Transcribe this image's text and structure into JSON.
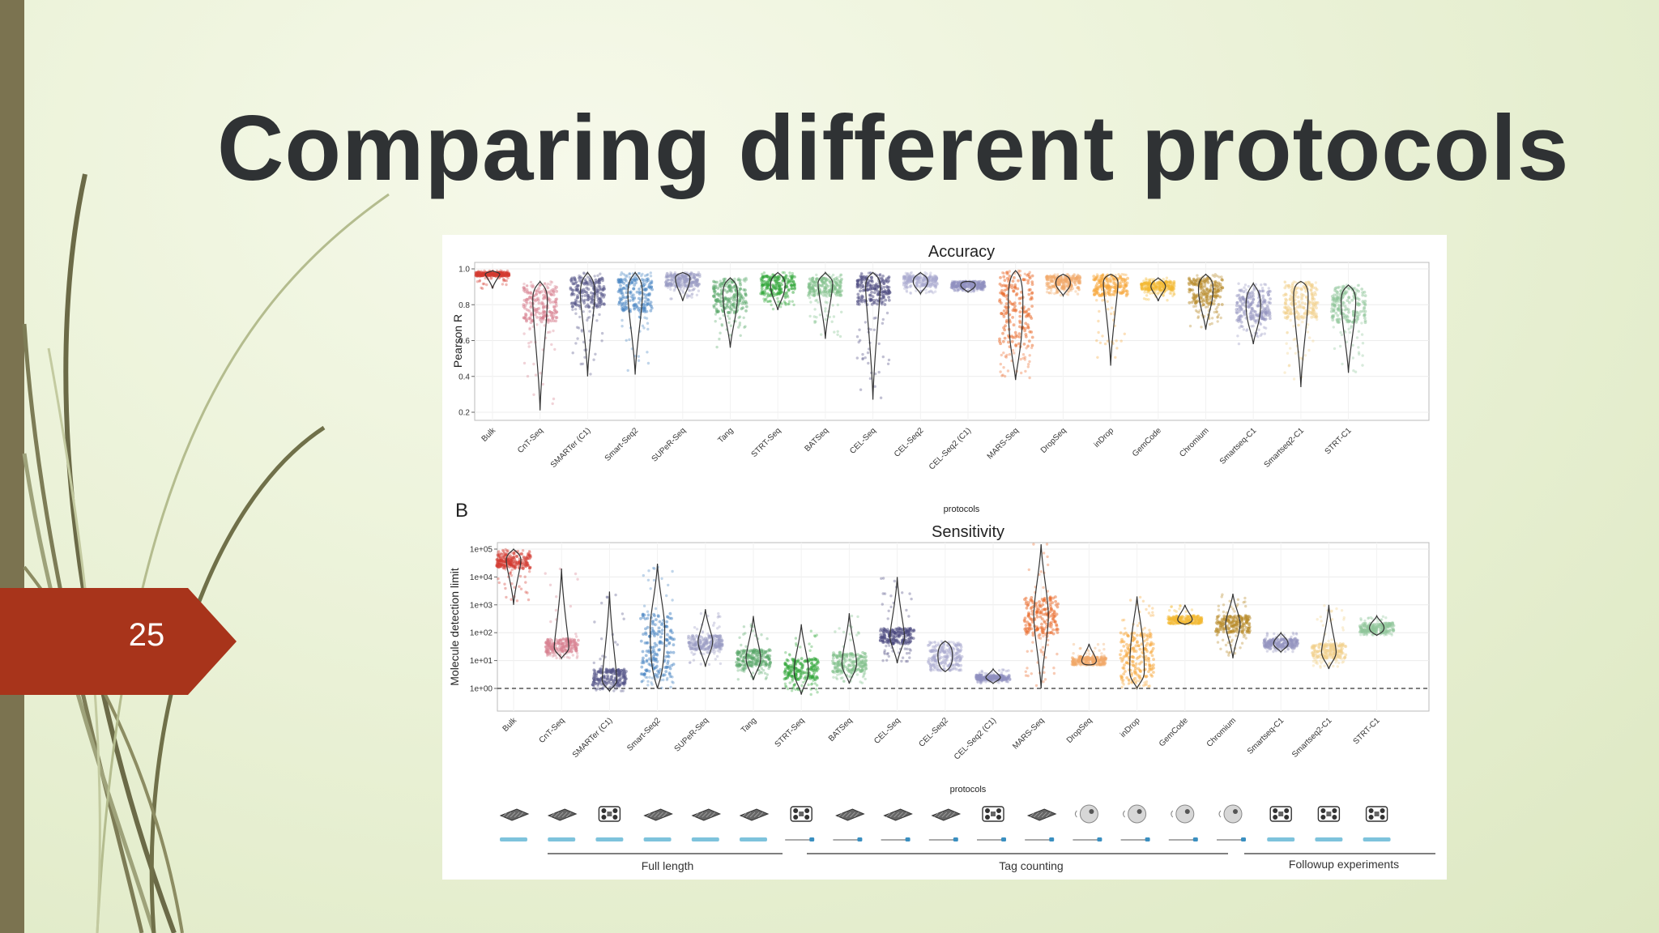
{
  "slide": {
    "title": "Comparing different protocols",
    "page_number": "25",
    "colors": {
      "accent": "#a8341b",
      "side_bar": "#7b7350"
    }
  },
  "chart_data": [
    {
      "type": "scatter",
      "title": "Accuracy",
      "xlabel": "protocols",
      "ylabel": "Pearson R",
      "ylim": [
        0.2,
        1.0
      ],
      "yticks": [
        "0.2",
        "0.4",
        "0.6",
        "0.8",
        "1.0"
      ],
      "categories": [
        "Bulk",
        "CnT-Seq",
        "SMARTer (C1)",
        "Smart-Seq2",
        "SUPeR-Seq",
        "Tang",
        "STRT-Seq",
        "BATSeq",
        "CEL-Seq",
        "CEL-Seq2",
        "CEL-Seq2 (C1)",
        "MARS-Seq",
        "DropSeq",
        "inDrop",
        "GemCode",
        "Chromium",
        "Smartseq-C1",
        "Smartseq2-C1",
        "STRT-C1"
      ],
      "colors": [
        "#d43a2f",
        "#d88090",
        "#535487",
        "#4a86c4",
        "#9a9bc4",
        "#5aa86a",
        "#33a83c",
        "#7fc08a",
        "#4c4a80",
        "#a9a9cf",
        "#9090c0",
        "#ea6a2a",
        "#f2a868",
        "#f7a83c",
        "#f3b934",
        "#b88a28",
        "#9494c0",
        "#f1d08a",
        "#8fc69a"
      ],
      "median": [
        0.97,
        0.83,
        0.86,
        0.86,
        0.95,
        0.86,
        0.91,
        0.92,
        0.9,
        0.93,
        0.91,
        0.82,
        0.92,
        0.92,
        0.9,
        0.89,
        0.8,
        0.85,
        0.82
      ],
      "q1": [
        0.96,
        0.7,
        0.78,
        0.76,
        0.9,
        0.75,
        0.85,
        0.85,
        0.8,
        0.9,
        0.89,
        0.56,
        0.89,
        0.85,
        0.88,
        0.8,
        0.7,
        0.72,
        0.7
      ],
      "q3": [
        0.98,
        0.9,
        0.95,
        0.95,
        0.97,
        0.93,
        0.96,
        0.95,
        0.96,
        0.96,
        0.93,
        0.97,
        0.96,
        0.96,
        0.93,
        0.95,
        0.88,
        0.92,
        0.89
      ],
      "min": [
        0.89,
        0.21,
        0.4,
        0.41,
        0.82,
        0.56,
        0.77,
        0.61,
        0.27,
        0.86,
        0.87,
        0.38,
        0.85,
        0.46,
        0.82,
        0.66,
        0.58,
        0.34,
        0.42
      ],
      "max": [
        0.99,
        0.93,
        0.98,
        0.98,
        0.98,
        0.95,
        0.98,
        0.98,
        0.98,
        0.98,
        0.93,
        0.99,
        0.97,
        0.97,
        0.95,
        0.97,
        0.92,
        0.93,
        0.91
      ]
    },
    {
      "type": "scatter",
      "title": "Sensitivity",
      "panel_label": "B",
      "xlabel": "protocols",
      "ylabel": "Molecule detection limit",
      "yscale": "log",
      "ylim": [
        1,
        100000
      ],
      "yticks": [
        "1e+00",
        "1e+01",
        "1e+02",
        "1e+03",
        "1e+04",
        "1e+05"
      ],
      "reference_line": 1,
      "categories": [
        "Bulk",
        "CnT-Seq",
        "SMARTer (C1)",
        "Smart-Seq2",
        "SUPeR-Seq",
        "Tang",
        "STRT-Seq",
        "BATSeq",
        "CEL-Seq",
        "CEL-Seq2",
        "CEL-Seq2 (C1)",
        "MARS-Seq",
        "DropSeq",
        "inDrop",
        "GemCode",
        "Chromium",
        "Smartseq-C1",
        "Smartseq2-C1",
        "STRT-C1"
      ],
      "colors": [
        "#d43a2f",
        "#d88090",
        "#535487",
        "#4a86c4",
        "#9a9bc4",
        "#5aa86a",
        "#33a83c",
        "#7fc08a",
        "#4c4a80",
        "#a9a9cf",
        "#9090c0",
        "#ea6a2a",
        "#f2a868",
        "#f7a83c",
        "#f3b934",
        "#b88a28",
        "#9494c0",
        "#f1d08a",
        "#8fc69a"
      ],
      "median": [
        40000,
        30,
        2,
        150,
        50,
        12,
        4,
        8,
        70,
        15,
        2.5,
        400,
        10,
        4,
        300,
        200,
        40,
        20,
        150
      ],
      "q1": [
        20000,
        20,
        1.3,
        3,
        25,
        6,
        2,
        4,
        40,
        5,
        2,
        80,
        7,
        2,
        220,
        100,
        30,
        12,
        100
      ],
      "q3": [
        70000,
        60,
        5,
        500,
        80,
        25,
        12,
        20,
        150,
        40,
        3,
        2000,
        14,
        100,
        400,
        400,
        60,
        40,
        220
      ],
      "min": [
        1000,
        12,
        0.8,
        1,
        6,
        2,
        0.6,
        1.5,
        8,
        4,
        1.5,
        1,
        7,
        1,
        200,
        12,
        20,
        5,
        80
      ],
      "max": [
        100000,
        20000,
        3000,
        30000,
        700,
        400,
        200,
        500,
        10000,
        50,
        5,
        300000,
        40,
        2000,
        1000,
        2500,
        100,
        1000,
        400
      ]
    }
  ],
  "protocol_groups": [
    "Full length",
    "Tag counting",
    "Followup experiments"
  ],
  "device_icons": [
    "plate",
    "plate",
    "fluidigm-chip",
    "plate",
    "plate",
    "plate",
    "fluidigm-chip",
    "plate",
    "plate",
    "plate",
    "fluidigm-chip",
    "plate",
    "droplet",
    "droplet",
    "droplet",
    "droplet",
    "fluidigm-chip",
    "fluidigm-chip",
    "fluidigm-chip"
  ],
  "transcript_icons": [
    "full",
    "full",
    "full",
    "full",
    "full",
    "full",
    "tag",
    "tag",
    "tag",
    "tag",
    "tag",
    "tag",
    "tag",
    "tag",
    "tag",
    "tag",
    "full",
    "full",
    "full"
  ]
}
